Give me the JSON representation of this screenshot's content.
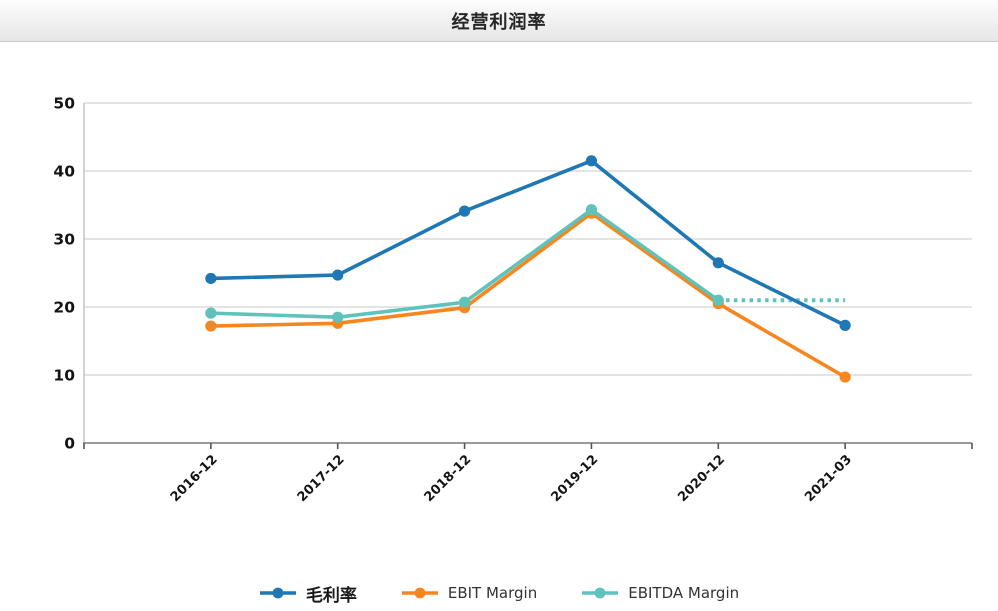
{
  "header": {
    "title": "经营利润率"
  },
  "chart_data": {
    "type": "line",
    "title": "经营利润率",
    "categories": [
      "2016-12",
      "2017-12",
      "2018-12",
      "2019-12",
      "2020-12",
      "2021-03"
    ],
    "series": [
      {
        "name": "毛利率",
        "color": "#1f77b4",
        "values": [
          24.2,
          24.7,
          34.1,
          41.5,
          26.5,
          17.3
        ]
      },
      {
        "name": "EBIT Margin",
        "color": "#f6861f",
        "values": [
          17.2,
          17.6,
          19.9,
          33.8,
          20.5,
          9.7
        ]
      },
      {
        "name": "EBITDA Margin",
        "color": "#5fc3bc",
        "values": [
          19.1,
          18.5,
          20.7,
          34.3,
          21.0,
          21.0
        ],
        "dotted_from_index": 4,
        "hide_last_marker": true
      }
    ],
    "xlabel": "",
    "ylabel": "",
    "ylim": [
      0,
      50
    ],
    "yticks": [
      0,
      10,
      20,
      30,
      40,
      50
    ],
    "grid": true,
    "grid_color": "#dcdcdc",
    "axis_color": "#9a9a9a",
    "legend_position": "bottom"
  }
}
